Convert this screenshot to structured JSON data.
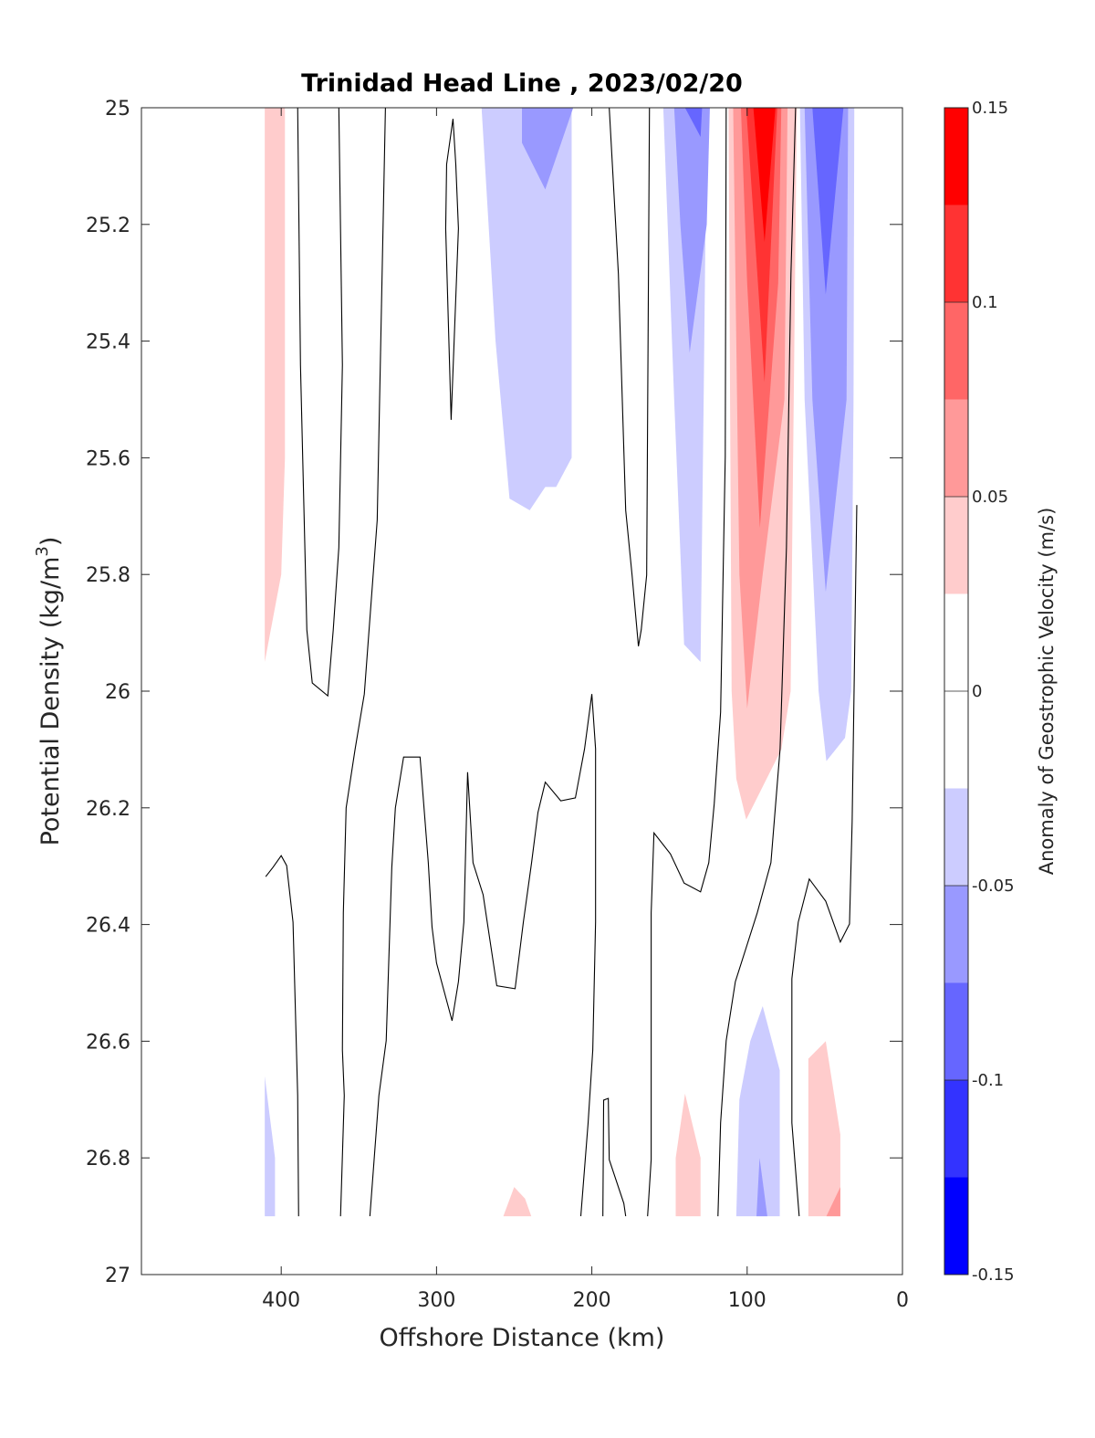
{
  "chart_data": {
    "type": "contourf",
    "title": "Trinidad Head Line , 2023/02/20",
    "xlabel": "Offshore Distance (km)",
    "ylabel_main": "Potential Density (kg/m",
    "ylabel_sup": "3",
    "ylabel_end": ")",
    "colorbar_label": "Anomaly of Geostrophic Velocity (m/s)",
    "xlim": [
      490,
      0
    ],
    "ylim": [
      25,
      27
    ],
    "x_reversed": true,
    "y_reversed": true,
    "x_ticks": [
      400,
      300,
      200,
      100,
      0
    ],
    "x_tick_labels": [
      "400",
      "300",
      "200",
      "100",
      "0"
    ],
    "y_ticks": [
      25,
      25.2,
      25.4,
      25.6,
      25.8,
      26,
      26.2,
      26.4,
      26.6,
      26.8,
      27
    ],
    "y_tick_labels": [
      "25",
      "25.2",
      "25.4",
      "25.6",
      "25.8",
      "26",
      "26.2",
      "26.4",
      "26.6",
      "26.8",
      "27"
    ],
    "colorbar": {
      "limits": [
        -0.15,
        0.15
      ],
      "levels": [
        -0.15,
        -0.125,
        -0.1,
        -0.075,
        -0.05,
        -0.025,
        0,
        0.025,
        0.05,
        0.075,
        0.1,
        0.125,
        0.15
      ],
      "band_colors": [
        "#0000FF",
        "#3333FF",
        "#6666FF",
        "#9999FF",
        "#CCCCFF",
        "#FFFFFF",
        "#FFFFFF",
        "#FFCCCC",
        "#FF9999",
        "#FF6666",
        "#FF3333",
        "#FF0000"
      ],
      "ticks": [
        0.15,
        0.1,
        0.05,
        0,
        -0.05,
        -0.1,
        -0.15
      ],
      "tick_labels": [
        "0.15",
        "0.1",
        "0.05",
        "0",
        "-0.05",
        "-0.1",
        "-0.15"
      ]
    },
    "filled_regions": [
      {
        "value_band": "0.025-0.05",
        "color": "#FFCCCC",
        "points": [
          [
            410.6,
            25
          ],
          [
            397.6,
            25
          ],
          [
            397.6,
            25.6
          ],
          [
            400,
            25.8
          ],
          [
            410.6,
            25.95
          ]
        ]
      },
      {
        "value_band": "-0.05--0.025",
        "color": "#CCCCFF",
        "points": [
          [
            271,
            25
          ],
          [
            213,
            25
          ],
          [
            213,
            25.6
          ],
          [
            223,
            25.65
          ],
          [
            230,
            25.65
          ],
          [
            240,
            25.69
          ],
          [
            253,
            25.67
          ],
          [
            262,
            25.4
          ]
        ]
      },
      {
        "value_band": "-0.075--0.05",
        "color": "#9999FF",
        "points": [
          [
            245,
            25
          ],
          [
            212,
            25
          ],
          [
            230,
            25.14
          ],
          [
            245,
            25.06
          ]
        ]
      },
      {
        "value_band": "-0.05--0.025",
        "color": "#CCCCFF",
        "points": [
          [
            154,
            25
          ],
          [
            126,
            25
          ],
          [
            128,
            25.5
          ],
          [
            130,
            25.95
          ],
          [
            140.6,
            25.92
          ],
          [
            147,
            25.5
          ]
        ]
      },
      {
        "value_band": "-0.075--0.05",
        "color": "#9999FF",
        "points": [
          [
            147,
            25
          ],
          [
            124,
            25
          ],
          [
            126,
            25.2
          ],
          [
            137,
            25.42
          ],
          [
            143,
            25.2
          ]
        ]
      },
      {
        "value_band": "-0.1--0.075",
        "color": "#6666FF",
        "points": [
          [
            140,
            25
          ],
          [
            129,
            25
          ],
          [
            130,
            25.05
          ]
        ]
      },
      {
        "value_band": "0.025-0.05",
        "color": "#FFCCCC",
        "points": [
          [
            112,
            25
          ],
          [
            68,
            25
          ],
          [
            70,
            25.5
          ],
          [
            72,
            26
          ],
          [
            78,
            26.1
          ],
          [
            100.6,
            26.22
          ],
          [
            107,
            26.15
          ],
          [
            110,
            26
          ]
        ]
      },
      {
        "value_band": "0.05-0.075",
        "color": "#FF9999",
        "points": [
          [
            109,
            25
          ],
          [
            74,
            25
          ],
          [
            76,
            25.5
          ],
          [
            90,
            25.8
          ],
          [
            100,
            26.03
          ],
          [
            105,
            25.8
          ]
        ]
      },
      {
        "value_band": "0.075-0.1",
        "color": "#FF6666",
        "points": [
          [
            104,
            25
          ],
          [
            78,
            25
          ],
          [
            80,
            25.3
          ],
          [
            91.8,
            25.72
          ],
          [
            100,
            25.3
          ]
        ]
      },
      {
        "value_band": "0.1-0.125",
        "color": "#FF3333",
        "points": [
          [
            100.6,
            25
          ],
          [
            80.6,
            25
          ],
          [
            88.8,
            25.47
          ]
        ]
      },
      {
        "value_band": "0.125-0.15",
        "color": "#FF0000",
        "points": [
          [
            96,
            25
          ],
          [
            81.8,
            25
          ],
          [
            88.8,
            25.23
          ]
        ]
      },
      {
        "value_band": "-0.05--0.025",
        "color": "#CCCCFF",
        "points": [
          [
            66,
            25
          ],
          [
            31,
            25
          ],
          [
            31.5,
            25.5
          ],
          [
            33,
            26
          ],
          [
            37,
            26.08
          ],
          [
            49,
            26.12
          ],
          [
            54,
            26
          ],
          [
            63,
            25.5
          ]
        ]
      },
      {
        "value_band": "-0.075--0.05",
        "color": "#9999FF",
        "points": [
          [
            63,
            25
          ],
          [
            35,
            25
          ],
          [
            36,
            25.5
          ],
          [
            49.4,
            25.83
          ],
          [
            58,
            25.5
          ]
        ]
      },
      {
        "value_band": "-0.1--0.075",
        "color": "#6666FF",
        "points": [
          [
            58,
            25
          ],
          [
            38,
            25
          ],
          [
            49.4,
            25.32
          ]
        ]
      },
      {
        "value_band": "-0.05--0.025",
        "color": "#CCCCFF",
        "points": [
          [
            410.6,
            26.66
          ],
          [
            404,
            26.8
          ],
          [
            404,
            26.9
          ],
          [
            410.6,
            26.9
          ]
        ]
      },
      {
        "value_band": "0.025-0.05",
        "color": "#FFCCCC",
        "points": [
          [
            257,
            26.9
          ],
          [
            250,
            26.85
          ],
          [
            243,
            26.87
          ],
          [
            239,
            26.9
          ]
        ]
      },
      {
        "value_band": "0.025-0.05",
        "color": "#FFCCCC",
        "points": [
          [
            146,
            26.9
          ],
          [
            146,
            26.8
          ],
          [
            140,
            26.69
          ],
          [
            130,
            26.8
          ],
          [
            130,
            26.9
          ]
        ]
      },
      {
        "value_band": "-0.05--0.025",
        "color": "#CCCCFF",
        "points": [
          [
            107,
            26.9
          ],
          [
            105,
            26.7
          ],
          [
            98,
            26.6
          ],
          [
            90,
            26.54
          ],
          [
            79,
            26.65
          ],
          [
            79,
            26.9
          ]
        ]
      },
      {
        "value_band": "-0.075--0.05",
        "color": "#9999FF",
        "points": [
          [
            94,
            26.9
          ],
          [
            92,
            26.8
          ],
          [
            87,
            26.9
          ]
        ]
      },
      {
        "value_band": "0.025-0.05",
        "color": "#FFCCCC",
        "points": [
          [
            60.6,
            26.9
          ],
          [
            60.6,
            26.63
          ],
          [
            49.4,
            26.6
          ],
          [
            40,
            26.76
          ],
          [
            40,
            26.9
          ]
        ]
      },
      {
        "value_band": "0.05-0.075",
        "color": "#FF9999",
        "points": [
          [
            49,
            26.9
          ],
          [
            40,
            26.85
          ],
          [
            40,
            26.9
          ]
        ]
      }
    ],
    "zero_contours": [
      [
        [
          389.4,
          25
        ],
        [
          387.6,
          25.441
        ],
        [
          383.5,
          25.895
        ],
        [
          380,
          25.986
        ],
        [
          370,
          26.008
        ],
        [
          366.5,
          25.895
        ],
        [
          362.9,
          25.754
        ],
        [
          360.6,
          25.441
        ],
        [
          362.9,
          25
        ]
      ],
      [
        [
          332.9,
          25
        ],
        [
          338.2,
          25.707
        ],
        [
          346.5,
          26.005
        ],
        [
          352.4,
          26.099
        ],
        [
          358.2,
          26.2
        ],
        [
          360,
          26.38
        ],
        [
          360.6,
          26.615
        ],
        [
          359.4,
          26.693
        ],
        [
          361.8,
          26.9
        ]
      ],
      [
        [
          289.4,
          25.019
        ],
        [
          293.5,
          25.097
        ],
        [
          294.1,
          25.207
        ],
        [
          290.6,
          25.535
        ],
        [
          285.9,
          25.207
        ],
        [
          287.6,
          25.097
        ],
        [
          289.4,
          25.019
        ]
      ],
      [
        [
          188.8,
          25
        ],
        [
          182.9,
          25.285
        ],
        [
          178.2,
          25.69
        ],
        [
          174.1,
          25.801
        ],
        [
          170,
          25.923
        ],
        [
          168.2,
          25.895
        ],
        [
          164.7,
          25.801
        ],
        [
          162.9,
          25
        ]
      ],
      [
        [
          410,
          26.318
        ],
        [
          405.3,
          26.302
        ],
        [
          400,
          26.282
        ],
        [
          396.5,
          26.299
        ],
        [
          392.4,
          26.396
        ],
        [
          389.4,
          26.693
        ],
        [
          388.8,
          26.9
        ]
      ],
      [
        [
          342.9,
          26.9
        ],
        [
          337.1,
          26.693
        ],
        [
          332.4,
          26.599
        ],
        [
          328.8,
          26.302
        ],
        [
          326.5,
          26.2
        ],
        [
          321.2,
          26.113
        ],
        [
          310.6,
          26.113
        ],
        [
          305.3,
          26.294
        ],
        [
          302.9,
          26.404
        ],
        [
          300,
          26.466
        ],
        [
          290,
          26.565
        ],
        [
          285.9,
          26.498
        ],
        [
          282.4,
          26.396
        ],
        [
          280,
          26.139
        ],
        [
          276.5,
          26.294
        ],
        [
          270,
          26.349
        ],
        [
          261.2,
          26.505
        ],
        [
          249.4,
          26.51
        ],
        [
          244.1,
          26.396
        ],
        [
          238.8,
          26.294
        ],
        [
          234.7,
          26.208
        ],
        [
          230,
          26.156
        ],
        [
          220,
          26.188
        ],
        [
          210.6,
          26.183
        ],
        [
          204.7,
          26.099
        ],
        [
          200,
          26.005
        ],
        [
          197.6,
          26.099
        ],
        [
          197.6,
          26.396
        ],
        [
          199.4,
          26.615
        ],
        [
          202.4,
          26.74
        ],
        [
          207.1,
          26.9
        ]
      ],
      [
        [
          192.9,
          26.9
        ],
        [
          192.4,
          26.701
        ],
        [
          189.4,
          26.698
        ],
        [
          188.8,
          26.803
        ],
        [
          179.4,
          26.878
        ],
        [
          178.2,
          26.9
        ]
      ],
      [
        [
          164.1,
          26.9
        ],
        [
          161.8,
          26.803
        ],
        [
          161.8,
          26.38
        ],
        [
          160,
          26.243
        ],
        [
          149.4,
          26.279
        ],
        [
          140.6,
          26.329
        ],
        [
          130,
          26.344
        ],
        [
          124.7,
          26.294
        ],
        [
          121.2,
          26.193
        ],
        [
          117.1,
          26.036
        ],
        [
          114.1,
          25.598
        ],
        [
          113.5,
          25
        ]
      ],
      [
        [
          118.8,
          26.9
        ],
        [
          117.1,
          26.74
        ],
        [
          113.5,
          26.599
        ],
        [
          107.6,
          26.498
        ],
        [
          93.5,
          26.38
        ],
        [
          84.7,
          26.294
        ],
        [
          78.8,
          26.099
        ],
        [
          74.7,
          25.754
        ],
        [
          71.8,
          25.285
        ],
        [
          68.8,
          25
        ]
      ],
      [
        [
          66.5,
          26.9
        ],
        [
          71.2,
          26.74
        ],
        [
          71.2,
          26.493
        ],
        [
          67.1,
          26.396
        ],
        [
          60,
          26.322
        ],
        [
          49.4,
          26.36
        ],
        [
          40,
          26.43
        ],
        [
          34.1,
          26.399
        ],
        [
          32.4,
          26.224
        ],
        [
          29.4,
          25.681
        ]
      ]
    ]
  }
}
